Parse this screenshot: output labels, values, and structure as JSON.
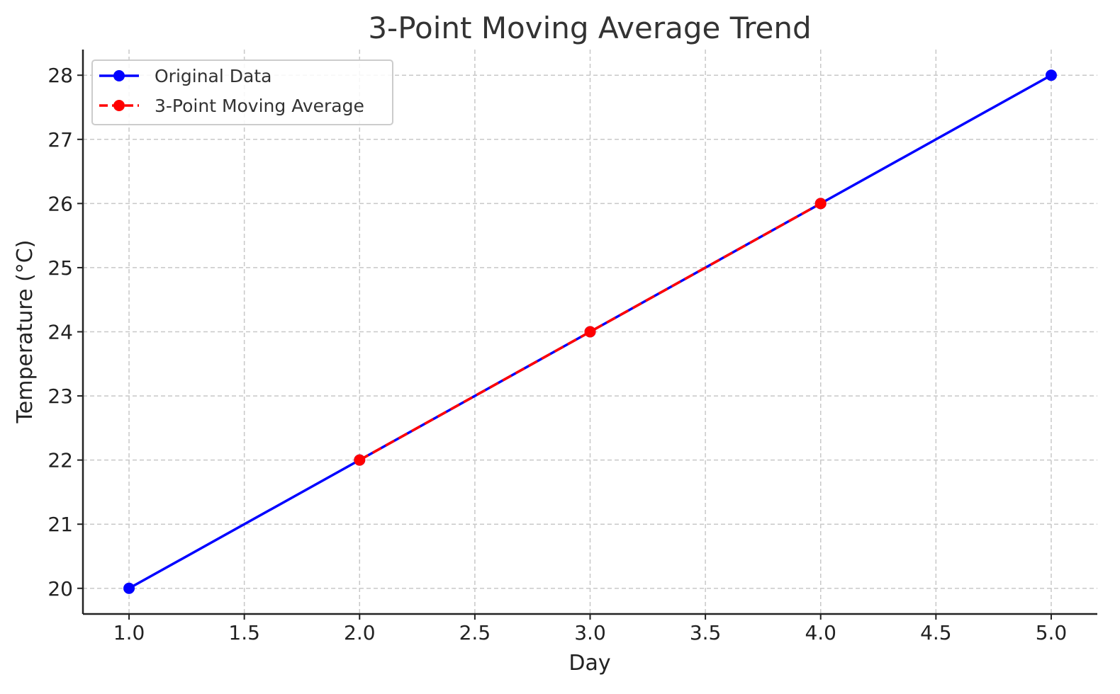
{
  "chart_data": {
    "type": "line",
    "title": "3-Point Moving Average Trend",
    "xlabel": "Day",
    "ylabel": "Temperature (°C)",
    "xlim": [
      0.8,
      5.2
    ],
    "ylim": [
      19.6,
      28.4
    ],
    "x_ticks": [
      1.0,
      1.5,
      2.0,
      2.5,
      3.0,
      3.5,
      4.0,
      4.5,
      5.0
    ],
    "x_tick_labels": [
      "1.0",
      "1.5",
      "2.0",
      "2.5",
      "3.0",
      "3.5",
      "4.0",
      "4.5",
      "5.0"
    ],
    "y_ticks": [
      20,
      21,
      22,
      23,
      24,
      25,
      26,
      27,
      28
    ],
    "y_tick_labels": [
      "20",
      "21",
      "22",
      "23",
      "24",
      "25",
      "26",
      "27",
      "28"
    ],
    "grid": true,
    "legend_position": "top-left",
    "series": [
      {
        "name": "Original Data",
        "color": "#0000ff",
        "line_style": "solid",
        "marker": "circle",
        "x": [
          1,
          2,
          3,
          4,
          5
        ],
        "y": [
          20,
          22,
          24,
          26,
          28
        ]
      },
      {
        "name": "3-Point Moving Average",
        "color": "#ff0000",
        "line_style": "dashed",
        "marker": "circle",
        "x": [
          2,
          3,
          4
        ],
        "y": [
          22,
          24,
          26
        ]
      }
    ]
  }
}
